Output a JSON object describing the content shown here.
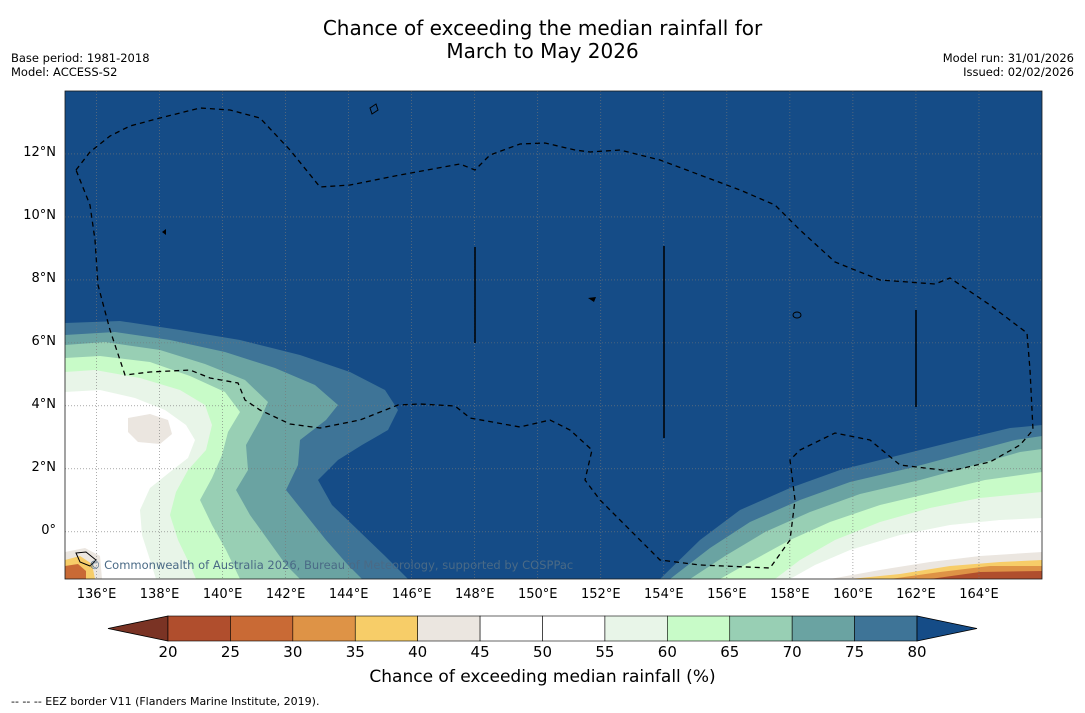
{
  "title": {
    "line1": "Chance of exceeding the median rainfall for",
    "line2": "March to May 2026"
  },
  "meta_left": {
    "base_period": "Base period: 1981-2018",
    "model": "Model: ACCESS-S2"
  },
  "meta_right": {
    "model_run": "Model run: 31/01/2026",
    "issued": "Issued: 02/02/2026"
  },
  "map": {
    "lon_range": [
      135,
      166
    ],
    "lat_range": [
      -1.5,
      14
    ],
    "lat_labels": [
      {
        "lat": 12,
        "label": "12°N"
      },
      {
        "lat": 10,
        "label": "10°N"
      },
      {
        "lat": 8,
        "label": "8°N"
      },
      {
        "lat": 6,
        "label": "6°N"
      },
      {
        "lat": 4,
        "label": "4°N"
      },
      {
        "lat": 2,
        "label": "2°N"
      },
      {
        "lat": 0,
        "label": "0°"
      }
    ],
    "lon_labels": [
      {
        "lon": 136,
        "label": "136°E"
      },
      {
        "lon": 138,
        "label": "138°E"
      },
      {
        "lon": 140,
        "label": "140°E"
      },
      {
        "lon": 142,
        "label": "142°E"
      },
      {
        "lon": 144,
        "label": "144°E"
      },
      {
        "lon": 146,
        "label": "146°E"
      },
      {
        "lon": 148,
        "label": "148°E"
      },
      {
        "lon": 150,
        "label": "150°E"
      },
      {
        "lon": 152,
        "label": "152°E"
      },
      {
        "lon": 154,
        "label": "154°E"
      },
      {
        "lon": 156,
        "label": "156°E"
      },
      {
        "lon": 158,
        "label": "158°E"
      },
      {
        "lon": 160,
        "label": "160°E"
      },
      {
        "lon": 162,
        "label": "162°E"
      },
      {
        "lon": 164,
        "label": "164°E"
      }
    ],
    "copyright": "© Commonwealth of Australia 2026, Bureau of Meteorology, supported by COSPPac"
  },
  "colorbar": {
    "ticks": [
      "20",
      "25",
      "30",
      "35",
      "40",
      "45",
      "50",
      "55",
      "60",
      "65",
      "70",
      "75",
      "80"
    ],
    "colors": [
      "#7a3324",
      "#b04e2d",
      "#c96a35",
      "#de9346",
      "#f7cd68",
      "#ebe6e0",
      "#ffffff",
      "#ffffff",
      "#e8f5e8",
      "#c8fbc8",
      "#98cfb4",
      "#6aa3a2",
      "#3e7497",
      "#154c87"
    ],
    "label": "Chance of exceeding median rainfall (%)"
  },
  "footer": "-- -- -- EEZ border V11 (Flanders Marine Institute, 2019)."
}
